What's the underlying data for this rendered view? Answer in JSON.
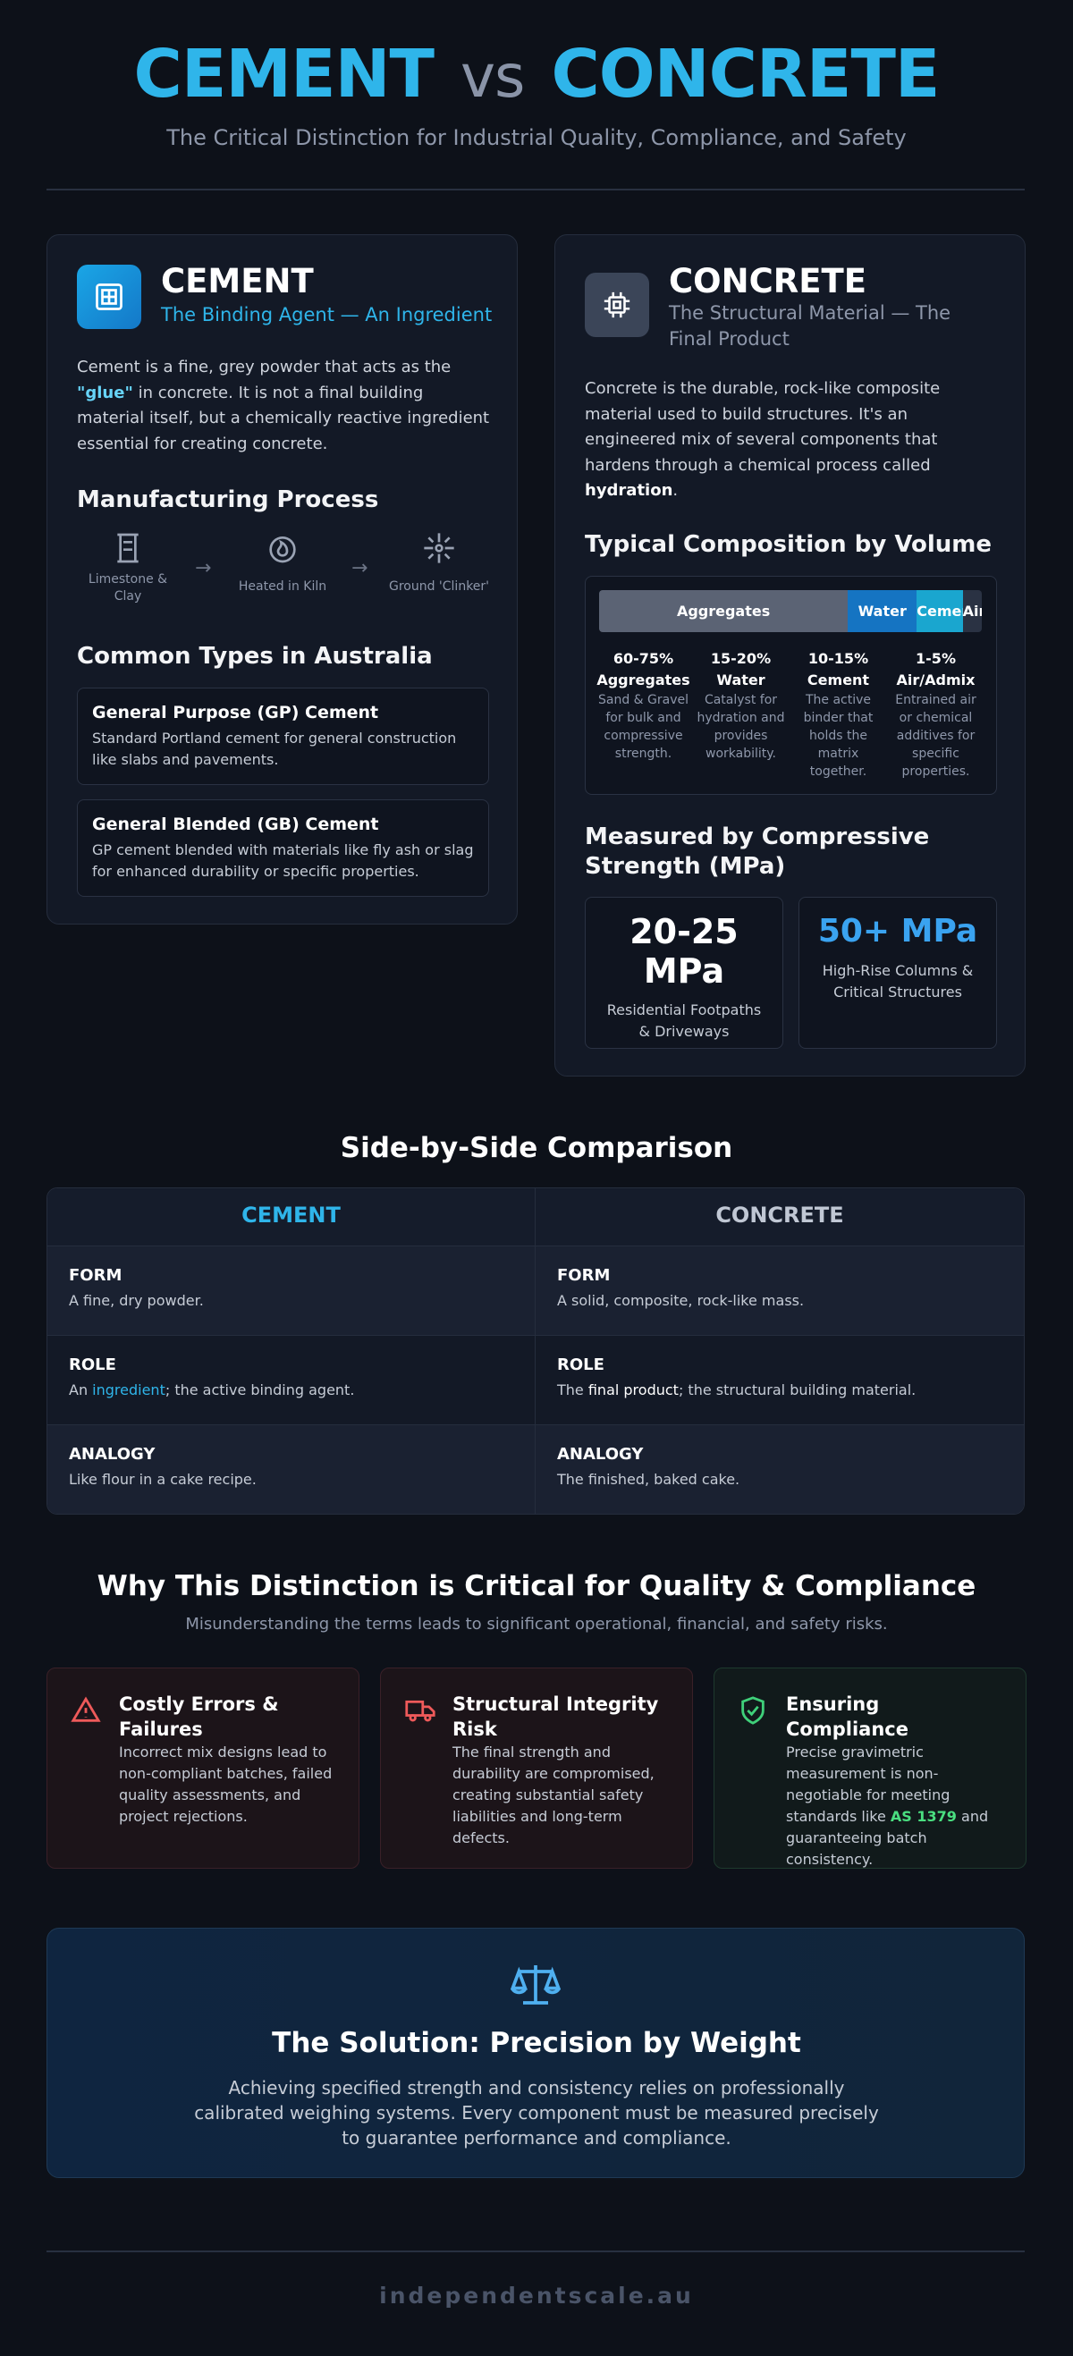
{
  "header": {
    "title_left": "CEMENT",
    "title_vs": "vs",
    "title_right": "CONCRETE",
    "subtitle": "The Critical Distinction for Industrial Quality, Compliance, and Safety"
  },
  "cement": {
    "title": "CEMENT",
    "subtitle": "The Binding Agent — An Ingredient",
    "intro": {
      "before": "Cement is a fine, grey powder that acts as the ",
      "highlight": "\"glue\"",
      "after": " in concrete. It is not a final building material itself, but a chemically reactive ingredient essential for creating concrete."
    },
    "process_title": "Manufacturing Process",
    "process_steps": [
      "Limestone & Clay",
      "Heated in Kiln",
      "Ground 'Clinker'"
    ],
    "types_title": "Common Types in Australia",
    "types": [
      {
        "name": "General Purpose (GP) Cement",
        "desc": "Standard Portland cement for general construction like slabs and pavements."
      },
      {
        "name": "General Blended (GB) Cement",
        "desc": "GP cement blended with materials like fly ash or slag for enhanced durability or specific properties."
      }
    ]
  },
  "concrete": {
    "title": "CONCRETE",
    "subtitle": "The Structural Material — The Final Product",
    "intro": {
      "before": "Concrete is the durable, rock-like composite material used to build structures. It's an engineered mix of several components that hardens through a chemical process called ",
      "highlight": "hydration",
      "after": "."
    },
    "composition_title": "Typical Composition by Volume",
    "bar_labels": [
      "Aggregates",
      "Water",
      "Cement",
      "Air"
    ],
    "components": [
      {
        "range": "60-75%",
        "name": "Aggregates",
        "desc": "Sand & Gravel for bulk and compressive strength."
      },
      {
        "range": "15-20%",
        "name": "Water",
        "desc": "Catalyst for hydration and provides workability."
      },
      {
        "range": "10-15%",
        "name": "Cement",
        "desc": "The active binder that holds the matrix together."
      },
      {
        "range": "1-5%",
        "name": "Air/Admix",
        "desc": "Entrained air or chemical additives for specific properties."
      }
    ],
    "strength_title": "Measured by Compressive Strength (MPa)",
    "strengths": [
      {
        "value": "20-25 MPa",
        "desc": "Residential Footpaths & Driveways"
      },
      {
        "value": "50+ MPa",
        "desc": "High-Rise Columns & Critical Structures"
      }
    ]
  },
  "comparison": {
    "title": "Side-by-Side Comparison",
    "headers": [
      "CEMENT",
      "CONCRETE"
    ],
    "rows": [
      [
        {
          "label": "FORM",
          "text": "A fine, dry powder."
        },
        {
          "label": "FORM",
          "text": "A solid, composite, rock-like mass."
        }
      ],
      [
        {
          "label": "ROLE",
          "before": "An ",
          "highlight": "ingredient",
          "after": "; the active binding agent."
        },
        {
          "label": "ROLE",
          "before": "The ",
          "highlight": "final product",
          "after": "; the structural building material."
        }
      ],
      [
        {
          "label": "ANALOGY",
          "text": "Like flour in a cake recipe."
        },
        {
          "label": "ANALOGY",
          "text": "The finished, baked cake."
        }
      ]
    ]
  },
  "why": {
    "title": "Why This Distinction is Critical for Quality & Compliance",
    "subtitle": "Misunderstanding the terms leads to significant operational, financial, and safety risks.",
    "cards": [
      {
        "title": "Costly Errors & Failures",
        "text": "Incorrect mix designs lead to non-compliant batches, failed quality assessments, and project rejections."
      },
      {
        "title": "Structural Integrity Risk",
        "text": "The final strength and durability are compromised, creating substantial safety liabilities and long-term defects."
      },
      {
        "title": "Ensuring Compliance",
        "before": "Precise gravimetric measurement is non-negotiable for meeting standards like ",
        "highlight": "AS 1379",
        "after": " and guaranteeing batch consistency."
      }
    ]
  },
  "solution": {
    "title": "The Solution: Precision by Weight",
    "text": "Achieving specified strength and consistency relies on professionally calibrated weighing systems. Every component must be measured precisely to guarantee performance and compliance."
  },
  "footer": "independentscale.au"
}
